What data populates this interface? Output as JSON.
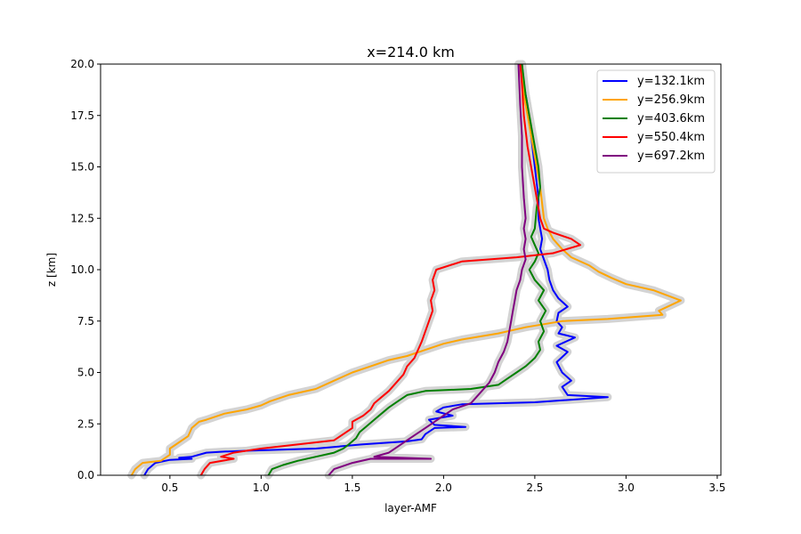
{
  "chart_data": {
    "type": "line",
    "title": "x=214.0 km",
    "xlabel": "layer-AMF",
    "ylabel": "z [km]",
    "xlim": [
      0.12,
      3.52
    ],
    "ylim": [
      0,
      20
    ],
    "xticks": [
      "0.5",
      "1.0",
      "1.5",
      "2.0",
      "2.5",
      "3.0",
      "3.5"
    ],
    "yticks": [
      "0.0",
      "2.5",
      "5.0",
      "7.5",
      "10.0",
      "12.5",
      "15.0",
      "17.5",
      "20.0"
    ],
    "grid": false,
    "legend_position": "top-right",
    "uncertainty_band_color": "#d3d3d3",
    "series": [
      {
        "name": "y=132.1km",
        "color": "#0000ff",
        "points": [
          [
            0.36,
            0.0
          ],
          [
            0.38,
            0.3
          ],
          [
            0.42,
            0.6
          ],
          [
            0.5,
            0.75
          ],
          [
            0.62,
            0.8
          ],
          [
            0.55,
            0.85
          ],
          [
            0.62,
            0.9
          ],
          [
            0.7,
            1.1
          ],
          [
            0.8,
            1.15
          ],
          [
            0.95,
            1.2
          ],
          [
            1.3,
            1.3
          ],
          [
            1.55,
            1.5
          ],
          [
            1.8,
            1.65
          ],
          [
            1.88,
            1.75
          ],
          [
            1.9,
            2.0
          ],
          [
            1.95,
            2.3
          ],
          [
            2.12,
            2.35
          ],
          [
            1.95,
            2.45
          ],
          [
            1.92,
            2.7
          ],
          [
            2.05,
            2.9
          ],
          [
            1.96,
            3.1
          ],
          [
            2.0,
            3.3
          ],
          [
            2.1,
            3.45
          ],
          [
            2.5,
            3.55
          ],
          [
            2.9,
            3.8
          ],
          [
            2.68,
            3.9
          ],
          [
            2.65,
            4.3
          ],
          [
            2.7,
            4.6
          ],
          [
            2.65,
            5.0
          ],
          [
            2.62,
            5.5
          ],
          [
            2.68,
            6.0
          ],
          [
            2.62,
            6.3
          ],
          [
            2.72,
            6.7
          ],
          [
            2.63,
            6.9
          ],
          [
            2.65,
            7.2
          ],
          [
            2.62,
            7.5
          ],
          [
            2.63,
            7.9
          ],
          [
            2.68,
            8.2
          ],
          [
            2.63,
            8.6
          ],
          [
            2.6,
            9.0
          ],
          [
            2.58,
            9.5
          ],
          [
            2.57,
            10.0
          ],
          [
            2.55,
            10.5
          ],
          [
            2.53,
            11.0
          ],
          [
            2.54,
            11.5
          ],
          [
            2.53,
            12.0
          ],
          [
            2.52,
            12.5
          ],
          [
            2.52,
            13.5
          ],
          [
            2.5,
            15.0
          ],
          [
            2.48,
            16.5
          ],
          [
            2.46,
            18.0
          ],
          [
            2.44,
            19.0
          ],
          [
            2.43,
            20.0
          ]
        ]
      },
      {
        "name": "y=256.9km",
        "color": "#ffa500",
        "points": [
          [
            0.29,
            0.0
          ],
          [
            0.31,
            0.3
          ],
          [
            0.35,
            0.6
          ],
          [
            0.45,
            0.7
          ],
          [
            0.5,
            1.0
          ],
          [
            0.5,
            1.3
          ],
          [
            0.55,
            1.6
          ],
          [
            0.6,
            1.9
          ],
          [
            0.62,
            2.3
          ],
          [
            0.66,
            2.6
          ],
          [
            0.7,
            2.7
          ],
          [
            0.8,
            3.0
          ],
          [
            0.92,
            3.2
          ],
          [
            1.0,
            3.4
          ],
          [
            1.05,
            3.6
          ],
          [
            1.15,
            3.9
          ],
          [
            1.3,
            4.2
          ],
          [
            1.4,
            4.6
          ],
          [
            1.5,
            5.0
          ],
          [
            1.6,
            5.3
          ],
          [
            1.7,
            5.6
          ],
          [
            1.8,
            5.8
          ],
          [
            1.9,
            6.1
          ],
          [
            2.0,
            6.4
          ],
          [
            2.1,
            6.6
          ],
          [
            2.3,
            6.9
          ],
          [
            2.45,
            7.2
          ],
          [
            2.65,
            7.5
          ],
          [
            2.9,
            7.6
          ],
          [
            3.2,
            7.8
          ],
          [
            3.18,
            8.0
          ],
          [
            3.3,
            8.5
          ],
          [
            3.15,
            9.0
          ],
          [
            3.1,
            9.1
          ],
          [
            3.0,
            9.3
          ],
          [
            2.92,
            9.6
          ],
          [
            2.85,
            9.9
          ],
          [
            2.8,
            10.2
          ],
          [
            2.7,
            10.6
          ],
          [
            2.65,
            11.0
          ],
          [
            2.6,
            11.5
          ],
          [
            2.57,
            12.0
          ],
          [
            2.55,
            12.5
          ],
          [
            2.53,
            14.0
          ],
          [
            2.5,
            15.5
          ],
          [
            2.47,
            17.0
          ],
          [
            2.44,
            18.5
          ],
          [
            2.43,
            20.0
          ]
        ]
      },
      {
        "name": "y=403.6km",
        "color": "#008000",
        "points": [
          [
            1.04,
            0.0
          ],
          [
            1.06,
            0.3
          ],
          [
            1.12,
            0.5
          ],
          [
            1.2,
            0.7
          ],
          [
            1.3,
            0.9
          ],
          [
            1.4,
            1.1
          ],
          [
            1.45,
            1.3
          ],
          [
            1.48,
            1.5
          ],
          [
            1.52,
            1.8
          ],
          [
            1.54,
            2.1
          ],
          [
            1.58,
            2.4
          ],
          [
            1.62,
            2.7
          ],
          [
            1.66,
            3.0
          ],
          [
            1.7,
            3.3
          ],
          [
            1.75,
            3.6
          ],
          [
            1.8,
            3.9
          ],
          [
            1.9,
            4.1
          ],
          [
            2.15,
            4.2
          ],
          [
            2.3,
            4.4
          ],
          [
            2.35,
            4.7
          ],
          [
            2.4,
            5.0
          ],
          [
            2.45,
            5.3
          ],
          [
            2.5,
            5.7
          ],
          [
            2.53,
            6.1
          ],
          [
            2.52,
            6.5
          ],
          [
            2.55,
            7.0
          ],
          [
            2.53,
            7.5
          ],
          [
            2.56,
            8.0
          ],
          [
            2.52,
            8.5
          ],
          [
            2.55,
            9.0
          ],
          [
            2.5,
            9.5
          ],
          [
            2.47,
            10.0
          ],
          [
            2.5,
            10.4
          ],
          [
            2.52,
            10.8
          ],
          [
            2.5,
            11.2
          ],
          [
            2.48,
            11.6
          ],
          [
            2.5,
            12.0
          ],
          [
            2.51,
            13.0
          ],
          [
            2.53,
            14.0
          ],
          [
            2.52,
            15.0
          ],
          [
            2.5,
            16.0
          ],
          [
            2.47,
            17.5
          ],
          [
            2.45,
            18.5
          ],
          [
            2.43,
            20.0
          ]
        ]
      },
      {
        "name": "y=550.4km",
        "color": "#ff0000",
        "points": [
          [
            0.67,
            0.0
          ],
          [
            0.69,
            0.3
          ],
          [
            0.72,
            0.6
          ],
          [
            0.85,
            0.8
          ],
          [
            0.78,
            0.9
          ],
          [
            0.85,
            1.1
          ],
          [
            1.0,
            1.3
          ],
          [
            1.2,
            1.5
          ],
          [
            1.4,
            1.7
          ],
          [
            1.45,
            2.0
          ],
          [
            1.5,
            2.3
          ],
          [
            1.5,
            2.6
          ],
          [
            1.56,
            2.9
          ],
          [
            1.6,
            3.2
          ],
          [
            1.62,
            3.5
          ],
          [
            1.66,
            3.8
          ],
          [
            1.7,
            4.1
          ],
          [
            1.74,
            4.5
          ],
          [
            1.78,
            4.9
          ],
          [
            1.8,
            5.3
          ],
          [
            1.84,
            5.7
          ],
          [
            1.86,
            6.1
          ],
          [
            1.88,
            6.5
          ],
          [
            1.9,
            7.0
          ],
          [
            1.92,
            7.5
          ],
          [
            1.94,
            8.0
          ],
          [
            1.93,
            8.5
          ],
          [
            1.95,
            9.0
          ],
          [
            1.94,
            9.5
          ],
          [
            1.96,
            10.0
          ],
          [
            2.1,
            10.4
          ],
          [
            2.4,
            10.6
          ],
          [
            2.6,
            10.8
          ],
          [
            2.75,
            11.2
          ],
          [
            2.7,
            11.5
          ],
          [
            2.6,
            11.8
          ],
          [
            2.55,
            12.0
          ],
          [
            2.53,
            12.5
          ],
          [
            2.52,
            13.0
          ],
          [
            2.5,
            14.0
          ],
          [
            2.48,
            15.0
          ],
          [
            2.46,
            16.0
          ],
          [
            2.44,
            17.5
          ],
          [
            2.43,
            19.0
          ],
          [
            2.42,
            20.0
          ]
        ]
      },
      {
        "name": "y=697.2km",
        "color": "#800080",
        "points": [
          [
            1.37,
            0.0
          ],
          [
            1.4,
            0.3
          ],
          [
            1.5,
            0.6
          ],
          [
            1.6,
            0.8
          ],
          [
            1.93,
            0.8
          ],
          [
            1.62,
            0.9
          ],
          [
            1.7,
            1.1
          ],
          [
            1.75,
            1.4
          ],
          [
            1.8,
            1.7
          ],
          [
            1.85,
            2.0
          ],
          [
            1.9,
            2.3
          ],
          [
            1.95,
            2.6
          ],
          [
            2.0,
            2.9
          ],
          [
            2.05,
            3.2
          ],
          [
            2.15,
            3.5
          ],
          [
            2.2,
            4.0
          ],
          [
            2.25,
            4.5
          ],
          [
            2.28,
            5.0
          ],
          [
            2.3,
            5.5
          ],
          [
            2.33,
            6.0
          ],
          [
            2.35,
            6.5
          ],
          [
            2.36,
            7.0
          ],
          [
            2.37,
            7.5
          ],
          [
            2.38,
            8.0
          ],
          [
            2.39,
            8.5
          ],
          [
            2.4,
            9.0
          ],
          [
            2.42,
            9.5
          ],
          [
            2.43,
            10.0
          ],
          [
            2.45,
            10.5
          ],
          [
            2.44,
            11.0
          ],
          [
            2.45,
            11.5
          ],
          [
            2.44,
            12.0
          ],
          [
            2.45,
            12.5
          ],
          [
            2.44,
            13.5
          ],
          [
            2.43,
            15.0
          ],
          [
            2.43,
            16.5
          ],
          [
            2.42,
            18.0
          ],
          [
            2.41,
            20.0
          ]
        ]
      }
    ]
  }
}
